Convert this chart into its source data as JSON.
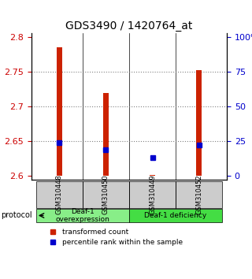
{
  "title": "GDS3490 / 1420764_at",
  "samples": [
    "GSM310448",
    "GSM310450",
    "GSM310449",
    "GSM310452"
  ],
  "red_bars": [
    2.785,
    2.72,
    2.602,
    2.752
  ],
  "blue_dots": [
    2.648,
    2.638,
    2.627,
    2.645
  ],
  "ylim": [
    2.595,
    2.805
  ],
  "yticks_left": [
    2.6,
    2.65,
    2.7,
    2.75,
    2.8
  ],
  "ytick_labels_left": [
    "2.6",
    "2.65",
    "2.7",
    "2.75",
    "2.8"
  ],
  "ytick_labels_right": [
    "0",
    "25",
    "50",
    "75",
    "100%"
  ],
  "left_color": "#cc0000",
  "right_color": "#0000cc",
  "bar_color": "#cc2200",
  "dot_color": "#0000cc",
  "groups": [
    {
      "label": "Deaf-1\noverexpression",
      "samples": [
        0,
        1
      ],
      "color": "#88ee88"
    },
    {
      "label": "Deaf-1 deficiency",
      "samples": [
        2,
        3
      ],
      "color": "#44dd44"
    }
  ],
  "protocol_label": "protocol",
  "legend_red": "transformed count",
  "legend_blue": "percentile rank within the sample",
  "grid_yticks": [
    2.65,
    2.7,
    2.75
  ],
  "bar_bottom": 2.6
}
